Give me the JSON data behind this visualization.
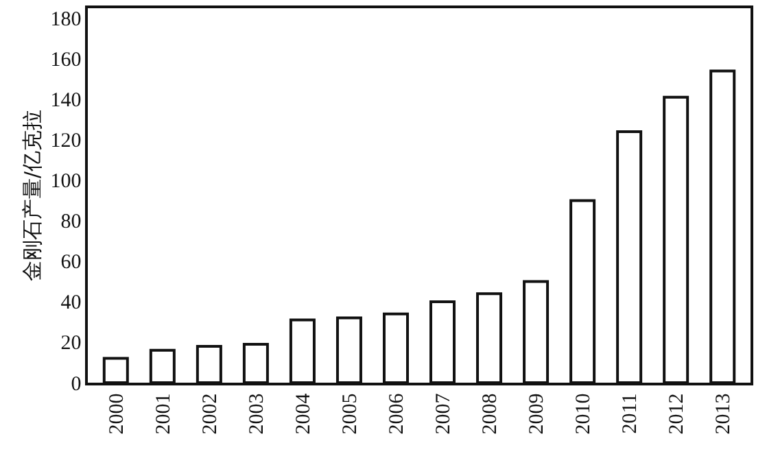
{
  "chart_data": {
    "type": "bar",
    "ylabel": "金刚石产量/亿克拉",
    "categories": [
      "2000",
      "2001",
      "2002",
      "2003",
      "2004",
      "2005",
      "2006",
      "2007",
      "2008",
      "2009",
      "2010",
      "2011",
      "2012",
      "2013"
    ],
    "values": [
      12,
      16,
      18,
      19,
      31,
      32,
      34,
      40,
      44,
      50,
      90,
      124,
      141,
      154
    ],
    "color": "#ffffff",
    "ylim": [
      0,
      185
    ],
    "yticks": [
      0,
      20,
      40,
      60,
      80,
      100,
      120,
      140,
      160,
      180
    ],
    "grid": false,
    "legend": false
  }
}
